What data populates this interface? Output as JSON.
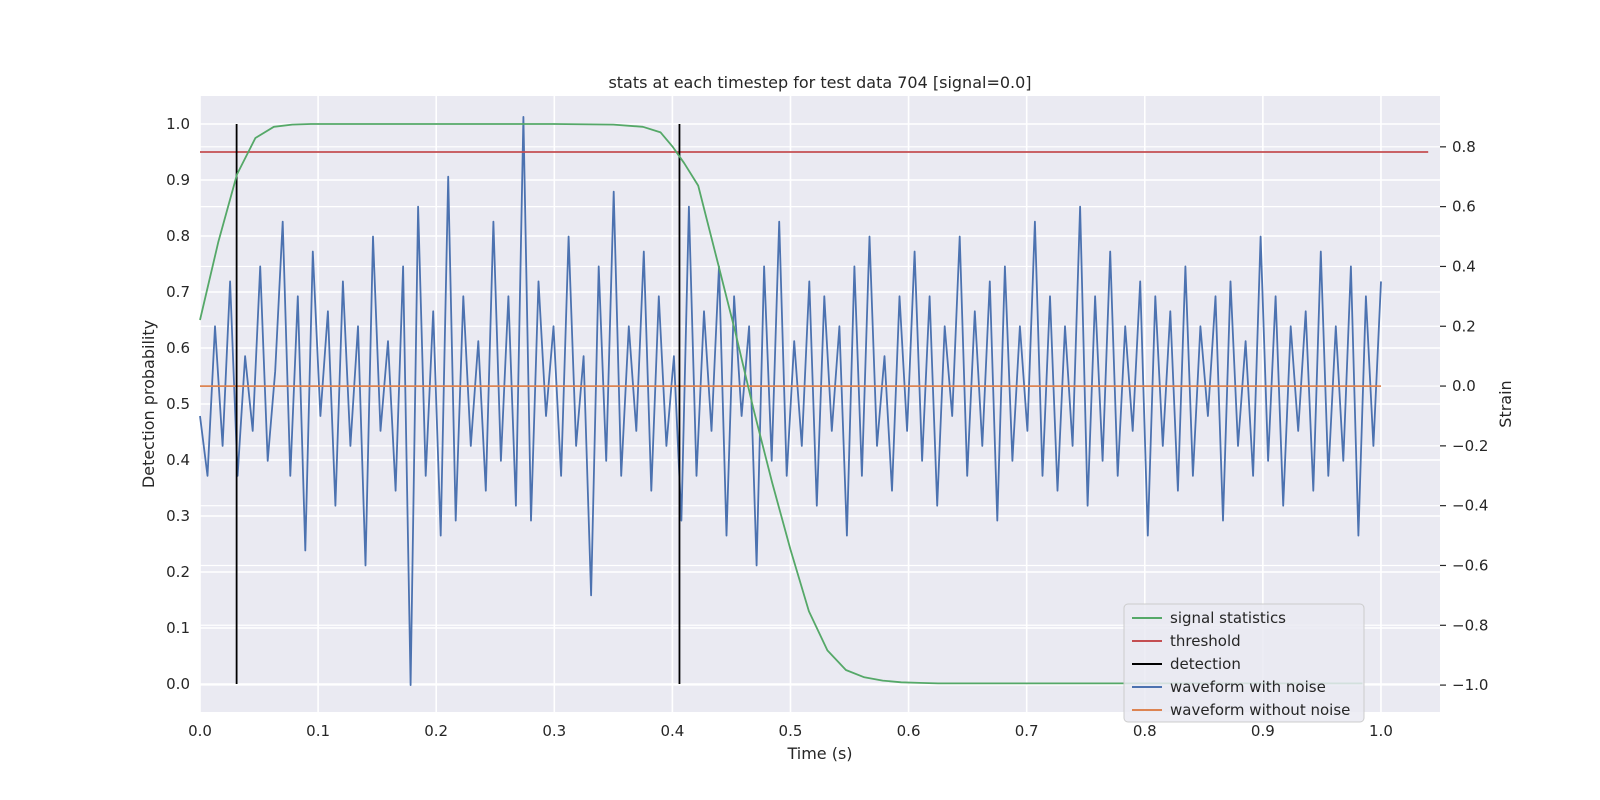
{
  "chart_data": {
    "type": "line",
    "title": "stats at each timestep for test data 704 [signal=0.0]",
    "xlabel": "Time (s)",
    "ylabel_left": "Detection probability",
    "ylabel_right": "Strain",
    "xlim": [
      0.0,
      1.05
    ],
    "ylim_left": [
      -0.05,
      1.05
    ],
    "ylim_right": [
      -1.09,
      0.97
    ],
    "x_ticks": [
      0.0,
      0.1,
      0.2,
      0.3,
      0.4,
      0.5,
      0.6,
      0.7,
      0.8,
      0.9,
      1.0
    ],
    "x_tick_labels": [
      "0.0",
      "0.1",
      "0.2",
      "0.3",
      "0.4",
      "0.5",
      "0.6",
      "0.7",
      "0.8",
      "0.9",
      "1.0"
    ],
    "y_left_ticks": [
      0.0,
      0.1,
      0.2,
      0.3,
      0.4,
      0.5,
      0.6,
      0.7,
      0.8,
      0.9,
      1.0
    ],
    "y_left_tick_labels": [
      "0.0",
      "0.1",
      "0.2",
      "0.3",
      "0.4",
      "0.5",
      "0.6",
      "0.7",
      "0.8",
      "0.9",
      "1.0"
    ],
    "y_right_ticks": [
      -1.0,
      -0.8,
      -0.6,
      -0.4,
      -0.2,
      0.0,
      0.2,
      0.4,
      0.6,
      0.8
    ],
    "y_right_tick_labels": [
      "−1.0",
      "−0.8",
      "−0.6",
      "−0.4",
      "−0.2",
      "0.0",
      "0.2",
      "0.4",
      "0.6",
      "0.8"
    ],
    "grid": true,
    "legend_position": "lower-right",
    "series": [
      {
        "name": "signal statistics",
        "axis": "left",
        "color": "#55a868",
        "x": [
          0.0,
          0.0156,
          0.0313,
          0.0469,
          0.0625,
          0.0781,
          0.0938,
          0.1094,
          0.125,
          0.14,
          0.2,
          0.3,
          0.35,
          0.375,
          0.39,
          0.4,
          0.41,
          0.4219,
          0.4375,
          0.4531,
          0.4688,
          0.4844,
          0.5,
          0.5156,
          0.5313,
          0.5469,
          0.5625,
          0.5781,
          0.5938,
          0.6094,
          0.625,
          0.65,
          0.7,
          0.8,
          0.9,
          0.9844
        ],
        "y": [
          0.65,
          0.79,
          0.91,
          0.975,
          0.995,
          0.999,
          1.0,
          1.0,
          1.0,
          1.0,
          1.0,
          1.0,
          0.999,
          0.995,
          0.985,
          0.96,
          0.93,
          0.89,
          0.76,
          0.63,
          0.49,
          0.36,
          0.24,
          0.13,
          0.06,
          0.025,
          0.012,
          0.006,
          0.003,
          0.002,
          0.001,
          0.001,
          0.001,
          0.001,
          0.001,
          0.001
        ]
      },
      {
        "name": "threshold",
        "axis": "left",
        "color": "#c44e52",
        "x": [
          0.0,
          1.04
        ],
        "y": [
          0.95,
          0.95
        ]
      },
      {
        "name": "detection",
        "axis": "left",
        "color": "#000000",
        "segments": [
          {
            "x": 0.031,
            "y": [
              0.0,
              1.0
            ]
          },
          {
            "x": 0.406,
            "y": [
              0.0,
              1.0
            ]
          }
        ]
      },
      {
        "name": "waveform with noise",
        "axis": "right",
        "color": "#4c72b0",
        "x_start": 0.0,
        "x_end": 1.0,
        "y": [
          -0.1,
          -0.3,
          0.2,
          -0.2,
          0.35,
          -0.3,
          0.1,
          -0.15,
          0.4,
          -0.25,
          0.05,
          0.55,
          -0.3,
          0.3,
          -0.55,
          0.45,
          -0.1,
          0.25,
          -0.4,
          0.35,
          -0.2,
          0.2,
          -0.6,
          0.5,
          -0.15,
          0.15,
          -0.35,
          0.4,
          -1.0,
          0.6,
          -0.3,
          0.25,
          -0.5,
          0.7,
          -0.45,
          0.3,
          -0.2,
          0.15,
          -0.35,
          0.55,
          -0.25,
          0.3,
          -0.4,
          0.9,
          -0.45,
          0.35,
          -0.1,
          0.2,
          -0.3,
          0.5,
          -0.2,
          0.1,
          -0.7,
          0.4,
          -0.25,
          0.65,
          -0.3,
          0.2,
          -0.15,
          0.45,
          -0.35,
          0.3,
          -0.2,
          0.1,
          -0.45,
          0.6,
          -0.3,
          0.25,
          -0.15,
          0.4,
          -0.5,
          0.3,
          -0.1,
          0.2,
          -0.6,
          0.4,
          -0.25,
          0.55,
          -0.3,
          0.15,
          -0.2,
          0.35,
          -0.4,
          0.3,
          -0.15,
          0.2,
          -0.5,
          0.4,
          -0.3,
          0.5,
          -0.2,
          0.1,
          -0.35,
          0.3,
          -0.15,
          0.45,
          -0.25,
          0.3,
          -0.4,
          0.2,
          -0.1,
          0.5,
          -0.3,
          0.25,
          -0.2,
          0.35,
          -0.45,
          0.4,
          -0.25,
          0.2,
          -0.15,
          0.55,
          -0.3,
          0.3,
          -0.35,
          0.2,
          -0.2,
          0.6,
          -0.4,
          0.3,
          -0.25,
          0.45,
          -0.3,
          0.2,
          -0.15,
          0.35,
          -0.5,
          0.3,
          -0.2,
          0.25,
          -0.35,
          0.4,
          -0.3,
          0.2,
          -0.1,
          0.3,
          -0.45,
          0.35,
          -0.2,
          0.15,
          -0.3,
          0.5,
          -0.25,
          0.3,
          -0.4,
          0.2,
          -0.15,
          0.25,
          -0.35,
          0.45,
          -0.3,
          0.2,
          -0.25,
          0.4,
          -0.5,
          0.3,
          -0.2,
          0.35
        ]
      },
      {
        "name": "waveform without noise",
        "axis": "right",
        "color": "#dd8452",
        "x": [
          0.0,
          1.0
        ],
        "y": [
          0.0,
          0.0
        ]
      }
    ]
  },
  "legend": {
    "items": [
      {
        "label": "signal statistics",
        "color": "#55a868"
      },
      {
        "label": "threshold",
        "color": "#c44e52"
      },
      {
        "label": "detection",
        "color": "#000000"
      },
      {
        "label": "waveform with noise",
        "color": "#4c72b0"
      },
      {
        "label": "waveform without noise",
        "color": "#dd8452"
      }
    ]
  }
}
